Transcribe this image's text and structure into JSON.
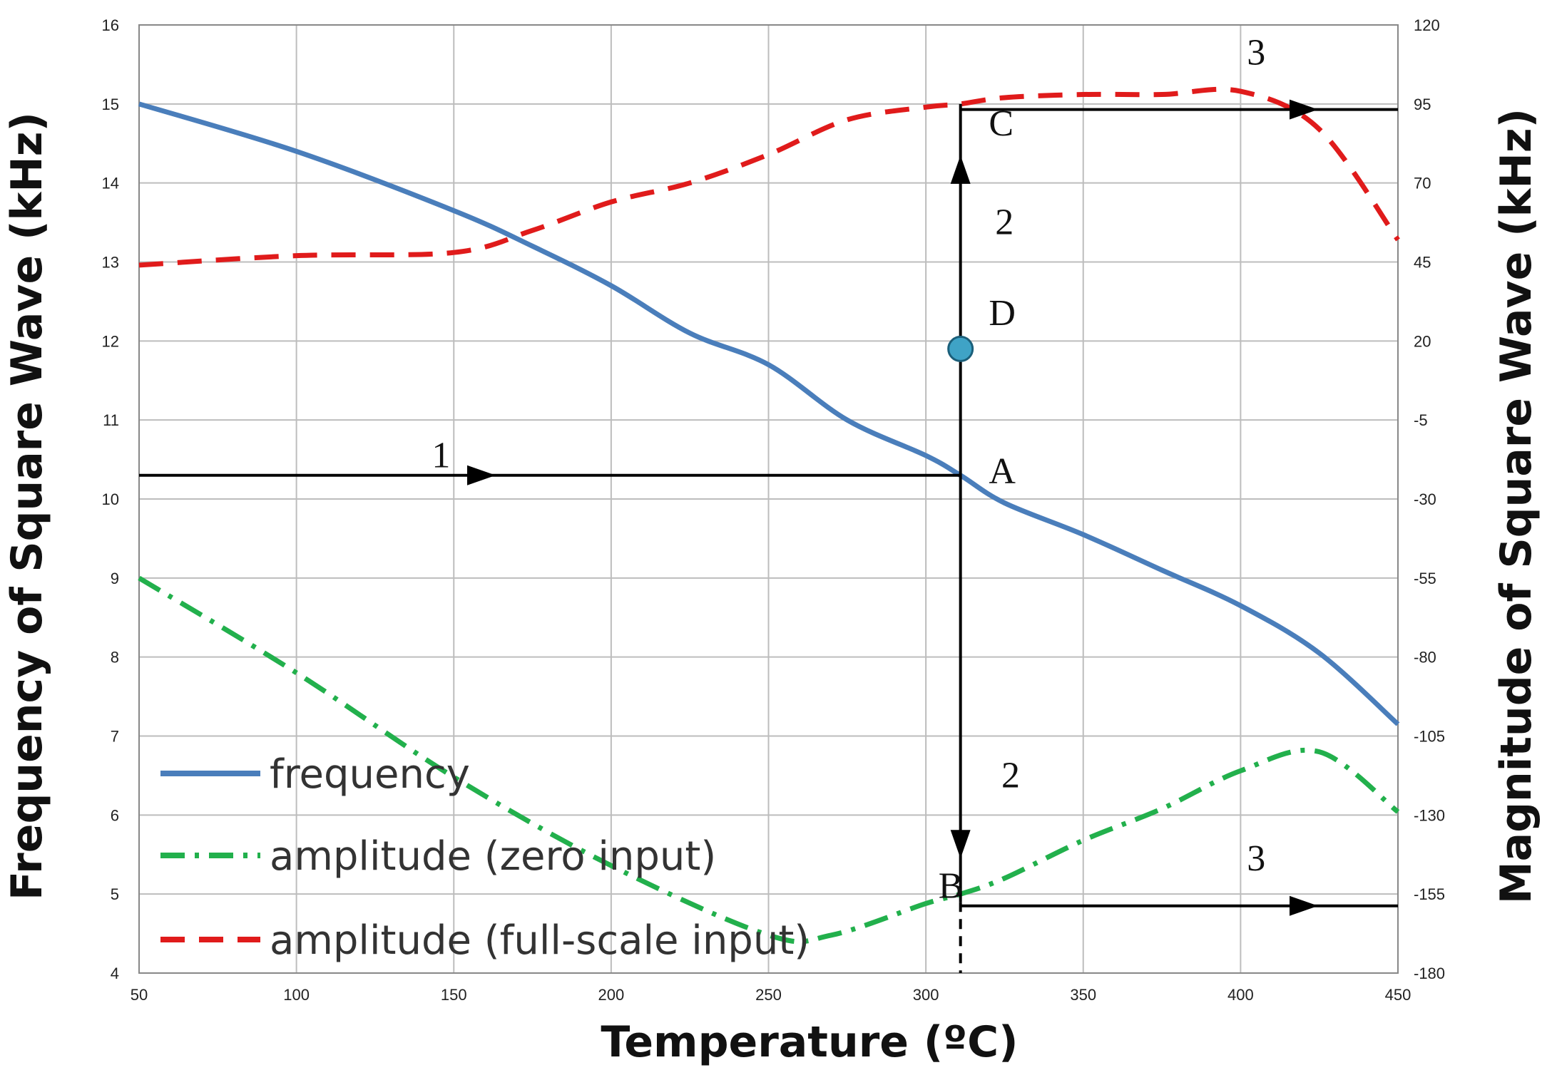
{
  "chart_data": {
    "type": "line",
    "title": "",
    "xlabel": "Temperature (ºC)",
    "ylabel_left": "Frequency of Square Wave (kHz)",
    "ylabel_right": "Magnitude of Square Wave (kHz)",
    "xlim": [
      50,
      450
    ],
    "ylim_left": [
      4,
      16
    ],
    "ylim_right": [
      -180,
      120
    ],
    "x_ticks": [
      "50",
      "100",
      "150",
      "200",
      "250",
      "300",
      "350",
      "400",
      "450"
    ],
    "y_left_ticks": [
      "4",
      "5",
      "6",
      "7",
      "8",
      "9",
      "10",
      "11",
      "12",
      "13",
      "14",
      "15",
      "16"
    ],
    "y_right_ticks": [
      "-180",
      "-155",
      "-130",
      "-105",
      "-80",
      "-55",
      "-30",
      "-5",
      "20",
      "45",
      "70",
      "95",
      "120"
    ],
    "grid": true,
    "legend_position": "bottom-left",
    "series": [
      {
        "name": "frequency",
        "axis": "left",
        "style": "solid",
        "color": "#4a7ebb",
        "x": [
          50,
          100,
          150,
          175,
          200,
          225,
          250,
          275,
          300,
          311,
          325,
          350,
          375,
          400,
          425,
          450
        ],
        "y": [
          15.0,
          14.4,
          13.65,
          13.2,
          12.7,
          12.1,
          11.7,
          11.0,
          10.55,
          10.3,
          9.95,
          9.55,
          9.1,
          8.65,
          8.05,
          7.15
        ]
      },
      {
        "name": "amplitude (zero input)",
        "axis": "right",
        "style": "dash-dot",
        "color": "#22b04c",
        "x": [
          50,
          100,
          150,
          200,
          250,
          270,
          300,
          311,
          325,
          350,
          375,
          400,
          425,
          450
        ],
        "y": [
          -55,
          -85,
          -118,
          -146,
          -168,
          -168,
          -158,
          -155,
          -150,
          -138,
          -128,
          -116,
          -110,
          -129
        ]
      },
      {
        "name": "amplitude (full-scale input)",
        "axis": "right",
        "style": "dashed",
        "color": "#e01b1b",
        "x": [
          50,
          100,
          150,
          175,
          200,
          225,
          250,
          275,
          300,
          311,
          325,
          350,
          375,
          400,
          425,
          450
        ],
        "y": [
          44,
          47,
          48,
          55,
          64,
          70,
          79,
          90,
          94,
          95,
          97,
          98,
          98,
          99,
          87,
          52
        ]
      }
    ],
    "annotations": [
      {
        "label": "1",
        "x": 143,
        "y_left": 10.4
      },
      {
        "label": "A",
        "x": 320,
        "y_left": 10.2
      },
      {
        "label": "B",
        "x": 304,
        "y_left": 4.95
      },
      {
        "label": "C",
        "x": 320,
        "y_left": 14.6
      },
      {
        "label": "D",
        "x": 320,
        "y_left": 12.2
      },
      {
        "label": "2",
        "x": 322,
        "y_left": 13.35
      },
      {
        "label": "2",
        "x": 324,
        "y_left": 6.35
      },
      {
        "label": "3",
        "x": 402,
        "y_left": 15.5
      },
      {
        "label": "3",
        "x": 402,
        "y_left": 5.3
      }
    ],
    "marker_D": {
      "x": 311,
      "y_left": 11.9
    },
    "guide_lines": {
      "line_1": {
        "x_from": 50,
        "x_to": 311,
        "y_left": 10.3
      },
      "vertical_2": {
        "x": 311,
        "y_left_from": 4.9,
        "y_left_to": 15.0
      },
      "line_3_top": {
        "x_from": 311,
        "x_to": 450,
        "y_left": 14.93
      },
      "line_3_bottom": {
        "x_from": 311,
        "x_to": 450,
        "y_left": 4.85
      }
    }
  }
}
